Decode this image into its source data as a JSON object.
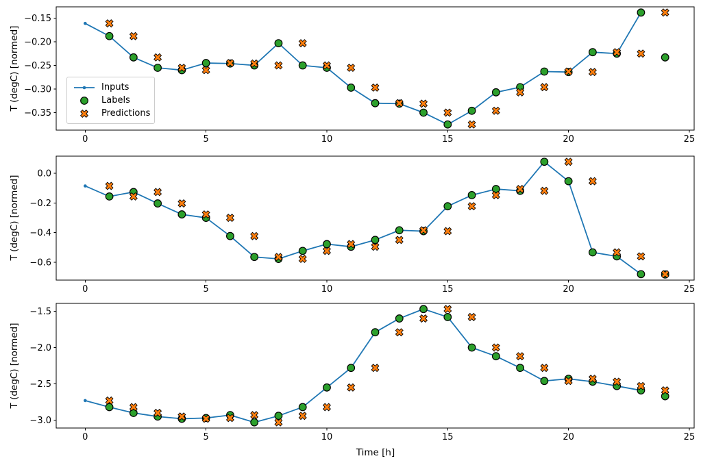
{
  "figure": {
    "xlabel": "Time [h]",
    "ylabel": "T (degC) [normed]",
    "background_color": "#ffffff",
    "axis_color": "#000000"
  },
  "legend": {
    "position": "center left of subplot 1",
    "items": [
      {
        "label": "Inputs",
        "marker": "line-with-dot",
        "color": "#1f77b4"
      },
      {
        "label": "Labels",
        "marker": "circle",
        "color": "#2ca02c"
      },
      {
        "label": "Predictions",
        "marker": "X",
        "color": "#ff7f0e"
      }
    ]
  },
  "chart_data": [
    {
      "type": "line",
      "subplot": 1,
      "title": "",
      "xlabel": "",
      "ylabel": "T (degC) [normed]",
      "grid": false,
      "xlim": [
        -1.2,
        25.2
      ],
      "ylim": [
        -0.387,
        -0.126
      ],
      "x_ticks": [
        0,
        5,
        10,
        15,
        20,
        25
      ],
      "x_tick_labels": [
        "0",
        "5",
        "10",
        "15",
        "20",
        "25"
      ],
      "y_ticks": [
        -0.15,
        -0.2,
        -0.25,
        -0.3,
        -0.35
      ],
      "y_tick_labels": [
        "−0.15",
        "−0.20",
        "−0.25",
        "−0.30",
        "−0.35"
      ],
      "series": [
        {
          "name": "Inputs",
          "kind": "line+dot-marker",
          "color": "#1f77b4",
          "x": [
            0,
            1,
            2,
            3,
            4,
            5,
            6,
            7,
            8,
            9,
            10,
            11,
            12,
            13,
            14,
            15,
            16,
            17,
            18,
            19,
            20,
            21,
            22,
            23
          ],
          "y": [
            -0.161,
            -0.188,
            -0.233,
            -0.255,
            -0.26,
            -0.245,
            -0.246,
            -0.25,
            -0.203,
            -0.25,
            -0.255,
            -0.297,
            -0.33,
            -0.331,
            -0.35,
            -0.375,
            -0.346,
            -0.307,
            -0.296,
            -0.263,
            -0.264,
            -0.222,
            -0.225,
            -0.138
          ]
        },
        {
          "name": "Labels",
          "kind": "scatter-circle",
          "color": "#2ca02c",
          "edge_color": "#000000",
          "x": [
            1,
            2,
            3,
            4,
            5,
            6,
            7,
            8,
            9,
            10,
            11,
            12,
            13,
            14,
            15,
            16,
            17,
            18,
            19,
            20,
            21,
            22,
            23,
            24
          ],
          "y": [
            -0.188,
            -0.233,
            -0.255,
            -0.26,
            -0.245,
            -0.246,
            -0.25,
            -0.203,
            -0.25,
            -0.255,
            -0.297,
            -0.33,
            -0.331,
            -0.35,
            -0.375,
            -0.346,
            -0.307,
            -0.296,
            -0.263,
            -0.264,
            -0.222,
            -0.225,
            -0.138,
            -0.233
          ]
        },
        {
          "name": "Predictions",
          "kind": "scatter-X",
          "color": "#ff7f0e",
          "edge_color": "#000000",
          "x": [
            1,
            2,
            3,
            4,
            5,
            6,
            7,
            8,
            9,
            10,
            11,
            12,
            13,
            14,
            15,
            16,
            17,
            18,
            19,
            20,
            21,
            22,
            23,
            24
          ],
          "y": [
            -0.161,
            -0.188,
            -0.233,
            -0.255,
            -0.26,
            -0.245,
            -0.246,
            -0.25,
            -0.203,
            -0.25,
            -0.255,
            -0.297,
            -0.33,
            -0.331,
            -0.35,
            -0.375,
            -0.346,
            -0.307,
            -0.296,
            -0.263,
            -0.264,
            -0.222,
            -0.225,
            -0.138
          ]
        }
      ]
    },
    {
      "type": "line",
      "subplot": 2,
      "title": "",
      "xlabel": "",
      "ylabel": "T (degC) [normed]",
      "grid": false,
      "xlim": [
        -1.2,
        25.2
      ],
      "ylim": [
        -0.72,
        0.116
      ],
      "x_ticks": [
        0,
        5,
        10,
        15,
        20,
        25
      ],
      "x_tick_labels": [
        "0",
        "5",
        "10",
        "15",
        "20",
        "25"
      ],
      "y_ticks": [
        0.0,
        -0.2,
        -0.4,
        -0.6
      ],
      "y_tick_labels": [
        "0.0",
        "−0.2",
        "−0.4",
        "−0.6"
      ],
      "series": [
        {
          "name": "Inputs",
          "kind": "line+dot-marker",
          "color": "#1f77b4",
          "x": [
            0,
            1,
            2,
            3,
            4,
            5,
            6,
            7,
            8,
            9,
            10,
            11,
            12,
            13,
            14,
            15,
            16,
            17,
            18,
            19,
            20,
            21,
            22,
            23
          ],
          "y": [
            -0.085,
            -0.156,
            -0.126,
            -0.203,
            -0.277,
            -0.3,
            -0.423,
            -0.564,
            -0.577,
            -0.523,
            -0.477,
            -0.495,
            -0.449,
            -0.384,
            -0.39,
            -0.222,
            -0.147,
            -0.106,
            -0.118,
            0.078,
            -0.053,
            -0.533,
            -0.56,
            -0.68
          ]
        },
        {
          "name": "Labels",
          "kind": "scatter-circle",
          "color": "#2ca02c",
          "edge_color": "#000000",
          "x": [
            1,
            2,
            3,
            4,
            5,
            6,
            7,
            8,
            9,
            10,
            11,
            12,
            13,
            14,
            15,
            16,
            17,
            18,
            19,
            20,
            21,
            22,
            23,
            24
          ],
          "y": [
            -0.156,
            -0.126,
            -0.203,
            -0.277,
            -0.3,
            -0.423,
            -0.564,
            -0.577,
            -0.523,
            -0.477,
            -0.495,
            -0.449,
            -0.384,
            -0.39,
            -0.222,
            -0.147,
            -0.106,
            -0.118,
            0.078,
            -0.053,
            -0.533,
            -0.56,
            -0.68,
            -0.682
          ]
        },
        {
          "name": "Predictions",
          "kind": "scatter-X",
          "color": "#ff7f0e",
          "edge_color": "#000000",
          "x": [
            1,
            2,
            3,
            4,
            5,
            6,
            7,
            8,
            9,
            10,
            11,
            12,
            13,
            14,
            15,
            16,
            17,
            18,
            19,
            20,
            21,
            22,
            23,
            24
          ],
          "y": [
            -0.085,
            -0.156,
            -0.126,
            -0.203,
            -0.277,
            -0.3,
            -0.423,
            -0.564,
            -0.577,
            -0.523,
            -0.477,
            -0.495,
            -0.449,
            -0.384,
            -0.39,
            -0.222,
            -0.147,
            -0.106,
            -0.118,
            0.078,
            -0.053,
            -0.533,
            -0.56,
            -0.68
          ]
        }
      ]
    },
    {
      "type": "line",
      "subplot": 3,
      "title": "",
      "xlabel": "Time [h]",
      "ylabel": "T (degC) [normed]",
      "grid": false,
      "xlim": [
        -1.2,
        25.2
      ],
      "ylim": [
        -3.108,
        -1.392
      ],
      "x_ticks": [
        0,
        5,
        10,
        15,
        20,
        25
      ],
      "x_tick_labels": [
        "0",
        "5",
        "10",
        "15",
        "20",
        "25"
      ],
      "y_ticks": [
        -1.5,
        -2.0,
        -2.5,
        -3.0
      ],
      "y_tick_labels": [
        "−1.5",
        "−2.0",
        "−2.5",
        "−3.0"
      ],
      "series": [
        {
          "name": "Inputs",
          "kind": "line+dot-marker",
          "color": "#1f77b4",
          "x": [
            0,
            1,
            2,
            3,
            4,
            5,
            6,
            7,
            8,
            9,
            10,
            11,
            12,
            13,
            14,
            15,
            16,
            17,
            18,
            19,
            20,
            21,
            22,
            23
          ],
          "y": [
            -2.73,
            -2.82,
            -2.9,
            -2.95,
            -2.98,
            -2.97,
            -2.93,
            -3.03,
            -2.94,
            -2.82,
            -2.55,
            -2.28,
            -1.79,
            -1.6,
            -1.47,
            -1.58,
            -2.0,
            -2.12,
            -2.28,
            -2.46,
            -2.43,
            -2.47,
            -2.53,
            -2.59
          ]
        },
        {
          "name": "Labels",
          "kind": "scatter-circle",
          "color": "#2ca02c",
          "edge_color": "#000000",
          "x": [
            1,
            2,
            3,
            4,
            5,
            6,
            7,
            8,
            9,
            10,
            11,
            12,
            13,
            14,
            15,
            16,
            17,
            18,
            19,
            20,
            21,
            22,
            23,
            24
          ],
          "y": [
            -2.82,
            -2.9,
            -2.95,
            -2.98,
            -2.97,
            -2.93,
            -3.03,
            -2.94,
            -2.82,
            -2.55,
            -2.28,
            -1.79,
            -1.6,
            -1.47,
            -1.58,
            -2.0,
            -2.12,
            -2.28,
            -2.46,
            -2.43,
            -2.47,
            -2.53,
            -2.59,
            -2.67
          ]
        },
        {
          "name": "Predictions",
          "kind": "scatter-X",
          "color": "#ff7f0e",
          "edge_color": "#000000",
          "x": [
            1,
            2,
            3,
            4,
            5,
            6,
            7,
            8,
            9,
            10,
            11,
            12,
            13,
            14,
            15,
            16,
            17,
            18,
            19,
            20,
            21,
            22,
            23,
            24
          ],
          "y": [
            -2.73,
            -2.82,
            -2.9,
            -2.95,
            -2.98,
            -2.97,
            -2.93,
            -3.03,
            -2.94,
            -2.82,
            -2.55,
            -2.28,
            -1.79,
            -1.6,
            -1.47,
            -1.58,
            -2.0,
            -2.12,
            -2.28,
            -2.46,
            -2.43,
            -2.47,
            -2.53,
            -2.59
          ]
        }
      ]
    }
  ]
}
